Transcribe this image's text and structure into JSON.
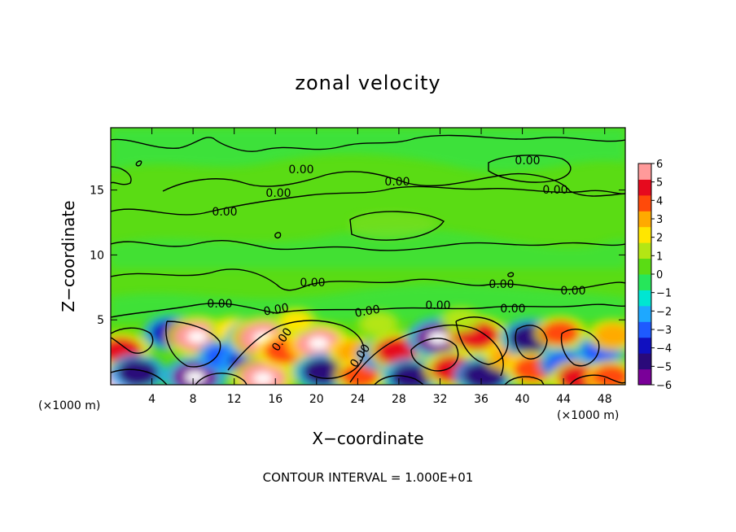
{
  "chart_data": {
    "type": "heatmap",
    "title": "zonal velocity",
    "xlabel": "X−coordinate",
    "ylabel": "Z−coordinate",
    "x_unit_left": "(×1000 m)",
    "x_unit_right": "(×1000 m)",
    "footer": "CONTOUR INTERVAL = 1.000E+01",
    "xlim": [
      0,
      50
    ],
    "ylim": [
      0,
      19.8
    ],
    "x_ticks": [
      4,
      8,
      12,
      16,
      20,
      24,
      28,
      32,
      36,
      40,
      44,
      48
    ],
    "x_tick_labels": [
      "4",
      "8",
      "12",
      "16",
      "20",
      "24",
      "28",
      "32",
      "36",
      "40",
      "44",
      "48"
    ],
    "y_ticks": [
      5,
      10,
      15
    ],
    "y_tick_labels": [
      "5",
      "10",
      "15"
    ],
    "colorbar": {
      "min": -6,
      "max": 6,
      "ticks": [
        6,
        5,
        4,
        3,
        2,
        1,
        0,
        -1,
        -2,
        -3,
        -4,
        -5,
        -6
      ],
      "tick_labels": [
        "6",
        "5",
        "4",
        "3",
        "2",
        "1",
        "0",
        "−1",
        "−2",
        "−3",
        "−4",
        "−5",
        "−6"
      ],
      "colors": [
        "#7a0099",
        "#2a0a7a",
        "#1010c0",
        "#1e5aff",
        "#1ea8ff",
        "#00e6d2",
        "#26e65a",
        "#5adc14",
        "#b4e614",
        "#ffe600",
        "#ffaa00",
        "#ff4a0a",
        "#e60a1e",
        "#ff9a9a"
      ]
    },
    "contour_label": "0.00",
    "contour_label_count": 13,
    "features": [
      {
        "x": 1.0,
        "z": 2.6,
        "value": 4.5
      },
      {
        "x": 0.8,
        "z": 0.2,
        "value": 5.5
      },
      {
        "x": 2.6,
        "z": 0.9,
        "value": -4.5
      },
      {
        "x": 5.8,
        "z": 4.0,
        "value": -4.0
      },
      {
        "x": 8.4,
        "z": 3.7,
        "value": 5.5
      },
      {
        "x": 8.2,
        "z": 0.6,
        "value": -5.5
      },
      {
        "x": 10.8,
        "z": 2.2,
        "value": -3.0
      },
      {
        "x": 11.8,
        "z": 4.2,
        "value": 2.5
      },
      {
        "x": 13.2,
        "z": 1.8,
        "value": -3.5
      },
      {
        "x": 14.3,
        "z": 3.5,
        "value": -5.8
      },
      {
        "x": 14.9,
        "z": 3.6,
        "value": 6.0
      },
      {
        "x": 14.8,
        "z": 0.5,
        "value": 5.5
      },
      {
        "x": 16.8,
        "z": 2.6,
        "value": 4.0
      },
      {
        "x": 20.2,
        "z": 3.2,
        "value": 5.5
      },
      {
        "x": 20.6,
        "z": 1.0,
        "value": -4.5
      },
      {
        "x": 23.6,
        "z": 2.5,
        "value": 3.0
      },
      {
        "x": 24.2,
        "z": 0.7,
        "value": 3.5
      },
      {
        "x": 26.3,
        "z": 2.3,
        "value": -3.0
      },
      {
        "x": 27.8,
        "z": 2.6,
        "value": 4.5
      },
      {
        "x": 29.2,
        "z": 0.6,
        "value": -4.5
      },
      {
        "x": 31.8,
        "z": 3.6,
        "value": -5.5
      },
      {
        "x": 33.2,
        "z": 1.2,
        "value": 4.5
      },
      {
        "x": 35.6,
        "z": 3.8,
        "value": 5.0
      },
      {
        "x": 36.3,
        "z": 0.7,
        "value": -5.0
      },
      {
        "x": 38.6,
        "z": 2.2,
        "value": 3.0
      },
      {
        "x": 40.8,
        "z": 3.6,
        "value": -5.0
      },
      {
        "x": 41.0,
        "z": 1.2,
        "value": 4.0
      },
      {
        "x": 43.7,
        "z": 4.0,
        "value": 3.5
      },
      {
        "x": 44.0,
        "z": 1.6,
        "value": -3.0
      },
      {
        "x": 45.5,
        "z": 0.5,
        "value": 4.5
      },
      {
        "x": 47.6,
        "z": 2.6,
        "value": -3.0
      },
      {
        "x": 48.8,
        "z": 3.8,
        "value": 3.0
      },
      {
        "x": 48.6,
        "z": 0.6,
        "value": 3.5
      },
      {
        "x": 18.0,
        "z": 4.9,
        "value": 2.0
      },
      {
        "x": 26.0,
        "z": 4.7,
        "value": 1.5
      },
      {
        "x": 34.0,
        "z": 5.0,
        "value": 1.5
      }
    ]
  }
}
